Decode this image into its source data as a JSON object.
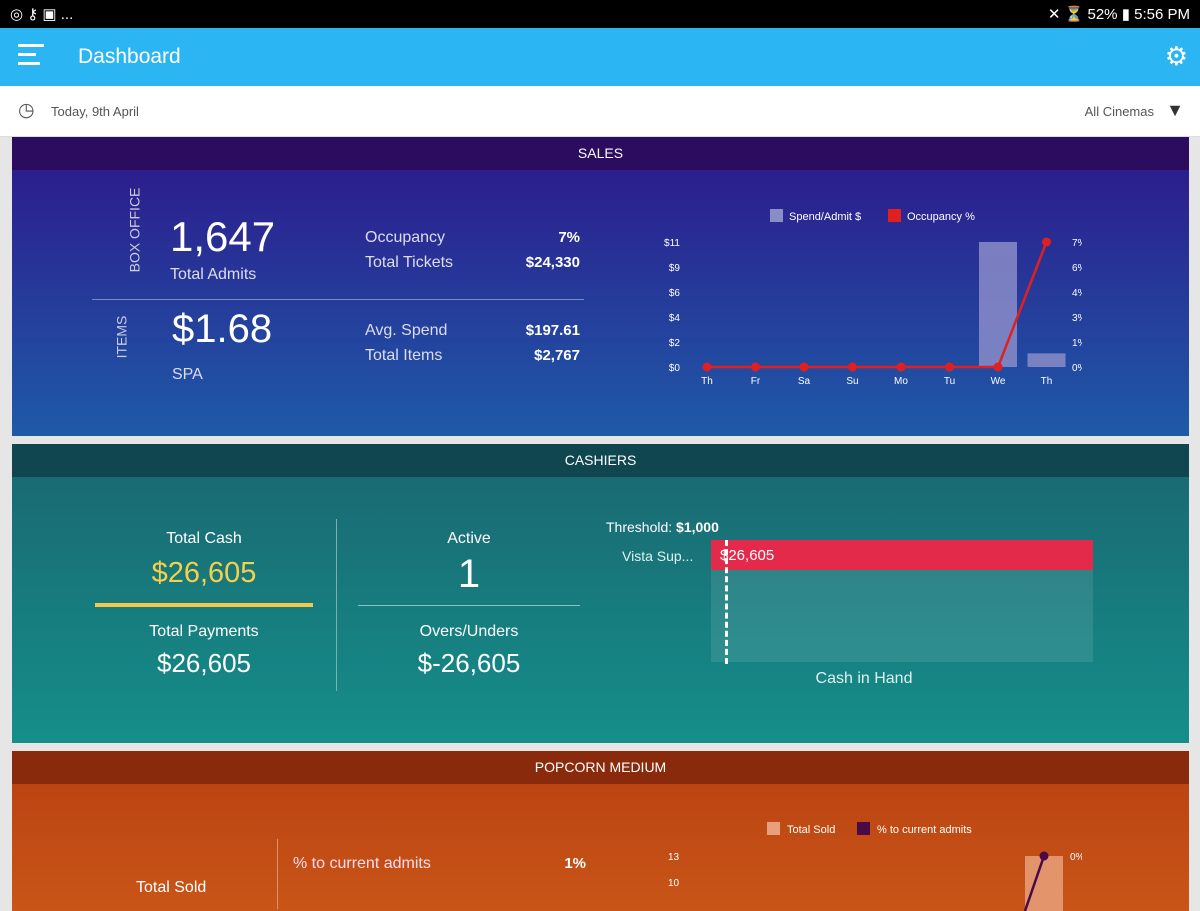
{
  "status_bar": {
    "left_icons": [
      "instagram-icon",
      "key-icon",
      "image-icon"
    ],
    "overflow": "...",
    "battery": "52%",
    "time": "5:56 PM"
  },
  "app_bar": {
    "title": "Dashboard"
  },
  "filter_bar": {
    "date": "Today, 9th April",
    "cinema": "All Cinemas"
  },
  "sales": {
    "title": "SALES",
    "box_office_label": "BOX OFFICE",
    "total_admits": "1,647",
    "total_admits_label": "Total Admits",
    "occupancy_label": "Occupancy",
    "occupancy": "7%",
    "total_tickets_label": "Total Tickets",
    "total_tickets": "$24,330",
    "items_label": "ITEMS",
    "spa": "$1.68",
    "spa_label": "SPA",
    "avg_spend_label": "Avg. Spend",
    "avg_spend": "$197.61",
    "total_items_label": "Total Items",
    "total_items": "$2,767"
  },
  "cashiers": {
    "title": "CASHIERS",
    "total_cash_label": "Total Cash",
    "total_cash": "$26,605",
    "total_payments_label": "Total Payments",
    "total_payments": "$26,605",
    "active_label": "Active",
    "active": "1",
    "overs_label": "Overs/Unders",
    "overs": "$-26,605",
    "threshold_label": "Threshold:",
    "threshold": "$1,000",
    "bar_label": "Vista Sup...",
    "bar_value": "$26,605",
    "axis_label": "Cash in Hand"
  },
  "popcorn": {
    "title": "POPCORN MEDIUM",
    "total_sold_label": "Total Sold",
    "pct_label": "% to current admits",
    "pct": "1%"
  },
  "chart_data": [
    {
      "type": "bar",
      "categories": [
        "Th",
        "Fr",
        "Sa",
        "Su",
        "Mo",
        "Tu",
        "We",
        "Th"
      ],
      "series": [
        {
          "name": "Spend/Admit $",
          "values": [
            0,
            0,
            0,
            0,
            0,
            0,
            11,
            1.2
          ],
          "color": "#8a8cc8",
          "axis": "left"
        },
        {
          "name": "Occupancy %",
          "type": "line",
          "values": [
            0,
            0,
            0,
            0,
            0,
            0,
            0,
            7
          ],
          "color": "#e02020",
          "axis": "right"
        }
      ],
      "y_left_ticks": [
        "$0",
        "$2",
        "$4",
        "$6",
        "$9",
        "$11"
      ],
      "y_left_range": [
        0,
        11
      ],
      "y_right_ticks": [
        "0%",
        "1%",
        "3%",
        "4%",
        "6%",
        "7%"
      ],
      "y_right_range": [
        0,
        7
      ],
      "legend": "top"
    },
    {
      "type": "bar",
      "series": [
        {
          "name": "Total Sold",
          "color": "#e8a07a"
        },
        {
          "name": "% to current admits",
          "type": "line",
          "color": "#4a0a4a"
        }
      ],
      "y_left_ticks": [
        "10",
        "13"
      ],
      "y_right_ticks": [
        "0%"
      ],
      "legend": "top"
    }
  ]
}
